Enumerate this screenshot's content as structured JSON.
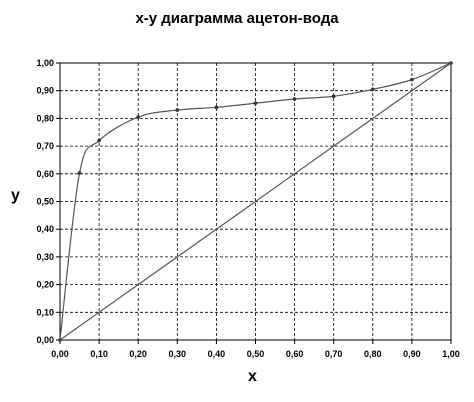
{
  "chart_data": {
    "type": "line",
    "title": "x-y диаграмма  ацетон-вода",
    "xlabel": "x",
    "ylabel": "y",
    "xlim": [
      0,
      1
    ],
    "ylim": [
      0,
      1
    ],
    "grid": true,
    "grid_style": "dashed",
    "x_ticks": [
      "0,00",
      "0,10",
      "0,20",
      "0,30",
      "0,40",
      "0,50",
      "0,60",
      "0,70",
      "0,80",
      "0,90",
      "1,00"
    ],
    "y_ticks": [
      "0,00",
      "0,10",
      "0,20",
      "0,30",
      "0,40",
      "0,50",
      "0,60",
      "0,70",
      "0,80",
      "0,90",
      "1,00"
    ],
    "series": [
      {
        "type": "equilibrium-curve",
        "x": [
          0,
          0.05,
          0.1,
          0.2,
          0.3,
          0.4,
          0.5,
          0.6,
          0.7,
          0.8,
          0.9,
          1.0
        ],
        "y": [
          0,
          0.603,
          0.72,
          0.805,
          0.83,
          0.84,
          0.855,
          0.87,
          0.88,
          0.905,
          0.94,
          1.0
        ],
        "markers": true,
        "color": "#555555"
      },
      {
        "type": "diagonal",
        "x": [
          0,
          1
        ],
        "y": [
          0,
          1
        ],
        "markers": false,
        "color": "#555555"
      }
    ]
  }
}
